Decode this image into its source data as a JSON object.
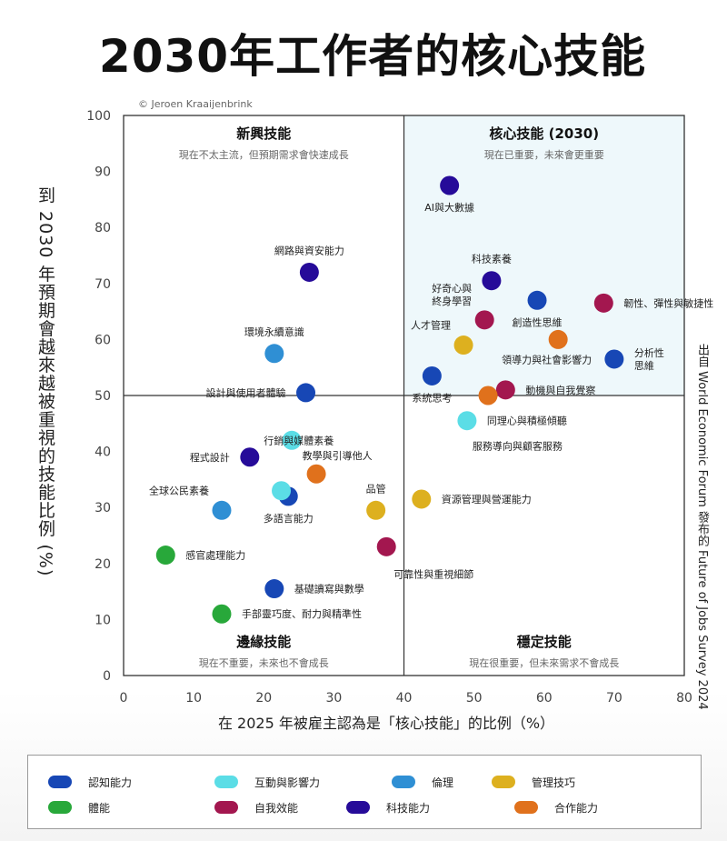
{
  "page": {
    "title": "2030年工作者的核心技能",
    "y_axis_label": "到 2030 年預期會越來越被重視的技能比例 (%)",
    "x_axis_label": "在 2025 年被雇主認為是「核心技能」的比例（%）",
    "copyright": "© Jeroen Kraaijenbrink",
    "source_note": "出自 World Economic Forum 發布的 Future of Jobs Survey 2024"
  },
  "quadrants": [
    {
      "name": "新興技能",
      "desc": "現在不太主流，但預期需求會快速成長",
      "position": "top-left"
    },
    {
      "name": "核心技能 (2030)",
      "desc": "現在已重要，未來會更重要",
      "position": "top-right"
    },
    {
      "name": "邊緣技能",
      "desc": "現在不重要，未來也不會成長",
      "position": "bottom-left"
    },
    {
      "name": "穩定技能",
      "desc": "現在很重要，但未來需求不會成長",
      "position": "bottom-right"
    }
  ],
  "categories": [
    {
      "key": "cognitive",
      "label": "認知能力",
      "color": "#1747b5"
    },
    {
      "key": "engagement",
      "label": "互動與影響力",
      "color": "#5bdde6"
    },
    {
      "key": "ethics",
      "label": "倫理",
      "color": "#2f8fd4"
    },
    {
      "key": "management",
      "label": "管理技巧",
      "color": "#ddb01f"
    },
    {
      "key": "physical",
      "label": "體能",
      "color": "#28a83a"
    },
    {
      "key": "self",
      "label": "自我效能",
      "color": "#a3174f"
    },
    {
      "key": "tech",
      "label": "科技能力",
      "color": "#260b99"
    },
    {
      "key": "collab",
      "label": "合作能力",
      "color": "#e0711c"
    }
  ],
  "chart_data": {
    "type": "scatter",
    "title": "2030年工作者的核心技能",
    "xlabel": "在 2025 年被雇主認為是「核心技能」的比例（%）",
    "ylabel": "到 2030 年預期會越來越被重視的技能比例 (%)",
    "xlim": [
      0,
      80
    ],
    "ylim": [
      0,
      100
    ],
    "xticks": [
      0,
      10,
      20,
      30,
      40,
      50,
      60,
      70,
      80
    ],
    "yticks": [
      0,
      10,
      20,
      30,
      40,
      50,
      60,
      70,
      80,
      90,
      100
    ],
    "divider_x": 40,
    "divider_y": 50,
    "points": [
      {
        "label": "AI與大數據",
        "x": 46.5,
        "y": 87.5,
        "cat": "tech",
        "anchor": "below"
      },
      {
        "label": "科技素養",
        "x": 52.5,
        "y": 70.5,
        "cat": "tech",
        "anchor": "above"
      },
      {
        "label": "網路與資安能力",
        "x": 26.5,
        "y": 72,
        "cat": "tech",
        "anchor": "above"
      },
      {
        "label": "好奇心與\n終身學習",
        "x": 51.5,
        "y": 63.5,
        "cat": "self",
        "anchor": "left-up"
      },
      {
        "label": "創造性思維",
        "x": 59,
        "y": 67,
        "cat": "cognitive",
        "anchor": "below"
      },
      {
        "label": "韌性、彈性與敏捷性",
        "x": 68.5,
        "y": 66.5,
        "cat": "self",
        "anchor": "right"
      },
      {
        "label": "人才管理",
        "x": 48.5,
        "y": 59,
        "cat": "management",
        "anchor": "left-up"
      },
      {
        "label": "領導力與社會影響力",
        "x": 62,
        "y": 60,
        "cat": "collab",
        "anchor": "below-left"
      },
      {
        "label": "分析性\n思維",
        "x": 70,
        "y": 56.5,
        "cat": "cognitive",
        "anchor": "right"
      },
      {
        "label": "系統思考",
        "x": 44,
        "y": 53.5,
        "cat": "cognitive",
        "anchor": "below"
      },
      {
        "label": "動機與自我覺察",
        "x": 54.5,
        "y": 51,
        "cat": "self",
        "anchor": "right"
      },
      {
        "label": "",
        "x": 52,
        "y": 50,
        "cat": "collab",
        "anchor": "none"
      },
      {
        "label": "同理心與積極傾聽",
        "x": 49,
        "y": 45.5,
        "cat": "engagement",
        "anchor": "right"
      },
      {
        "label": "服務導向與顧客服務",
        "x": 49,
        "y": 45.5,
        "cat": "engagement",
        "anchor": "below-right",
        "hide_dot": true
      },
      {
        "label": "環境永續意識",
        "x": 21.5,
        "y": 57.5,
        "cat": "ethics",
        "anchor": "above"
      },
      {
        "label": "設計與使用者體驗",
        "x": 26,
        "y": 50.5,
        "cat": "cognitive",
        "anchor": "left"
      },
      {
        "label": "行銷與媒體素養",
        "x": 24,
        "y": 42,
        "cat": "engagement",
        "anchor": "none"
      },
      {
        "label": "程式設計",
        "x": 18,
        "y": 39,
        "cat": "tech",
        "anchor": "left"
      },
      {
        "label": "教學與引導他人",
        "x": 27.5,
        "y": 36,
        "cat": "collab",
        "anchor": "above-right"
      },
      {
        "label": "全球公民素養",
        "x": 14,
        "y": 29.5,
        "cat": "ethics",
        "anchor": "left-up"
      },
      {
        "label": "多語言能力",
        "x": 23.5,
        "y": 32,
        "cat": "cognitive",
        "anchor": "below"
      },
      {
        "label": "",
        "x": 22.5,
        "y": 33,
        "cat": "engagement",
        "anchor": "none"
      },
      {
        "label": "品管",
        "x": 36,
        "y": 29.5,
        "cat": "management",
        "anchor": "above"
      },
      {
        "label": "資源管理與營運能力",
        "x": 42.5,
        "y": 31.5,
        "cat": "management",
        "anchor": "right"
      },
      {
        "label": "感官處理能力",
        "x": 6,
        "y": 21.5,
        "cat": "physical",
        "anchor": "right"
      },
      {
        "label": "可靠性與重視細節",
        "x": 37.5,
        "y": 23,
        "cat": "self",
        "anchor": "below-right"
      },
      {
        "label": "基礎讀寫與數學",
        "x": 21.5,
        "y": 15.5,
        "cat": "cognitive",
        "anchor": "right"
      },
      {
        "label": "手部靈巧度、耐力與精準性",
        "x": 14,
        "y": 11,
        "cat": "physical",
        "anchor": "right"
      }
    ]
  }
}
